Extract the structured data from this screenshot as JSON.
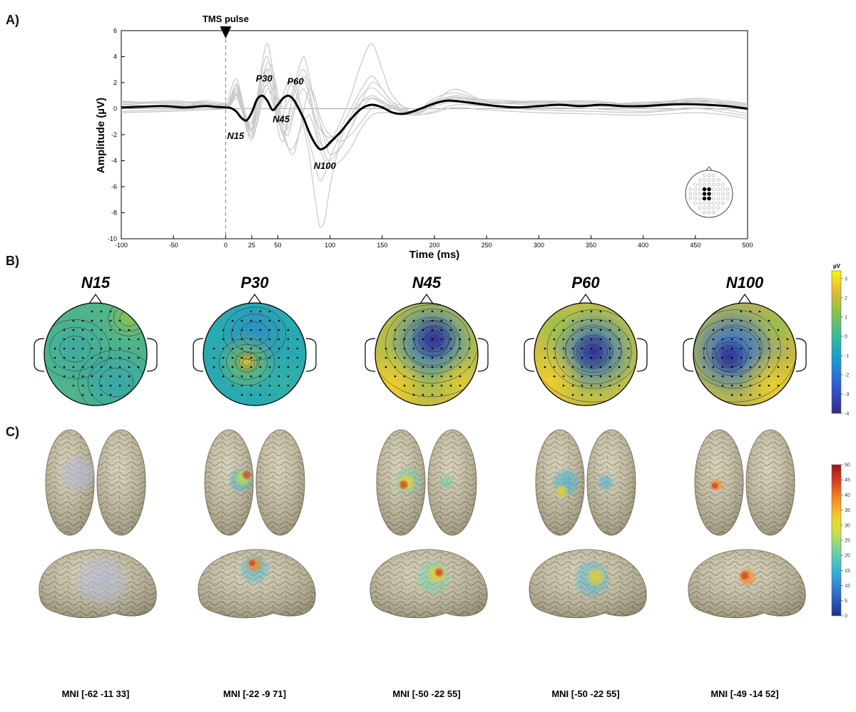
{
  "panels": {
    "a": "A)",
    "b": "B)",
    "c": "C)"
  },
  "colors": {
    "mean": "#000000",
    "channels": "#c8c8c8",
    "cortex": "#cfc7aa",
    "brain_fold": "#9b9478",
    "topo_stops": [
      "#352a87",
      "#2f5ed5",
      "#1b9acb",
      "#3db99d",
      "#8fc24a",
      "#e6b935",
      "#f9f60f"
    ],
    "source_stops": [
      "#1f2f8f",
      "#2f70d0",
      "#38b3d6",
      "#6dd0a8",
      "#c8e04a",
      "#f3d12b",
      "#f08a24",
      "#d43a1f",
      "#9c1717"
    ]
  },
  "chart_data": {
    "type": "line",
    "title": "",
    "annotation": "TMS pulse",
    "xlabel": "Time (ms)",
    "ylabel": "Amplitude (µV)",
    "xlim": [
      -100,
      500
    ],
    "ylim": [
      -10,
      6
    ],
    "xticks": [
      -100,
      -50,
      0,
      25,
      50,
      100,
      150,
      200,
      250,
      300,
      350,
      400,
      450,
      500
    ],
    "yticks": [
      -10,
      -8,
      -6,
      -4,
      -2,
      0,
      2,
      4,
      6
    ],
    "pulse_time": 0,
    "mean_series": {
      "x": [
        -100,
        -80,
        -60,
        -40,
        -20,
        -10,
        0,
        5,
        10,
        15,
        20,
        25,
        30,
        35,
        40,
        45,
        50,
        55,
        60,
        65,
        70,
        75,
        80,
        85,
        90,
        95,
        100,
        110,
        120,
        130,
        140,
        150,
        160,
        170,
        180,
        190,
        200,
        210,
        220,
        240,
        260,
        280,
        300,
        320,
        340,
        360,
        380,
        400,
        420,
        440,
        460,
        480,
        500
      ],
      "y": [
        0.1,
        0.15,
        0.2,
        0.1,
        0.2,
        0.15,
        0.1,
        0.05,
        -0.2,
        -0.7,
        -0.9,
        -0.3,
        0.7,
        1.0,
        0.6,
        -0.1,
        0.3,
        0.8,
        1.0,
        0.7,
        0.0,
        -0.8,
        -1.8,
        -2.6,
        -3.1,
        -3.0,
        -2.6,
        -1.8,
        -0.8,
        0.0,
        0.3,
        0.1,
        -0.3,
        -0.4,
        -0.2,
        0.1,
        0.4,
        0.6,
        0.6,
        0.4,
        0.2,
        0.1,
        0.2,
        0.3,
        0.2,
        0.3,
        0.2,
        0.2,
        0.3,
        0.35,
        0.3,
        0.2,
        0.0
      ]
    },
    "peaks": [
      {
        "label": "N15",
        "x": 15,
        "y": -0.9
      },
      {
        "label": "P30",
        "x": 30,
        "y": 1.0
      },
      {
        "label": "N45",
        "x": 45,
        "y": -0.1
      },
      {
        "label": "P60",
        "x": 60,
        "y": 1.0
      },
      {
        "label": "N100",
        "x": 95,
        "y": -3.1
      }
    ],
    "channels_x": [
      -100,
      -50,
      -20,
      0,
      5,
      10,
      15,
      20,
      25,
      30,
      35,
      40,
      45,
      50,
      55,
      60,
      65,
      70,
      75,
      80,
      85,
      90,
      95,
      100,
      110,
      120,
      130,
      140,
      150,
      160,
      180,
      200,
      220,
      250,
      300,
      350,
      400,
      450,
      480,
      500
    ],
    "channels": [
      [
        0.5,
        0.4,
        0.6,
        0.5,
        1.5,
        2.3,
        1.0,
        -1.5,
        -2.0,
        -0.5,
        1.2,
        1.8,
        0.5,
        -0.5,
        1.0,
        2.0,
        1.6,
        0.5,
        -1.5,
        -3.5,
        -6.5,
        -9.0,
        -8.5,
        -6.0,
        -2.5,
        -0.5,
        0.5,
        0.8,
        0.4,
        0.1,
        -0.2,
        0.5,
        0.8,
        0.4,
        0.5,
        0.6,
        0.3,
        0.7,
        0.4,
        0.2
      ],
      [
        0.3,
        0.5,
        0.3,
        0.2,
        1.0,
        1.8,
        0.8,
        -1.0,
        -1.6,
        0.5,
        2.5,
        3.0,
        1.0,
        -1.0,
        -0.5,
        1.5,
        2.0,
        1.0,
        -0.8,
        -2.5,
        -4.0,
        -5.5,
        -5.0,
        -3.8,
        -2.0,
        -0.5,
        1.0,
        1.6,
        1.0,
        0.3,
        -0.3,
        0.8,
        1.2,
        0.6,
        0.4,
        0.3,
        0.5,
        0.6,
        0.3,
        0.1
      ],
      [
        0.1,
        0.2,
        0.3,
        0.4,
        0.6,
        1.4,
        0.3,
        -1.2,
        -1.8,
        0.0,
        3.0,
        4.0,
        2.0,
        -1.5,
        -2.5,
        -0.5,
        1.0,
        2.0,
        2.2,
        1.0,
        -1.0,
        -2.5,
        -3.0,
        -2.8,
        -1.5,
        0.0,
        1.5,
        2.5,
        1.5,
        0.5,
        -0.5,
        0.3,
        1.0,
        0.5,
        0.3,
        0.2,
        0.1,
        0.4,
        0.2,
        -0.1
      ],
      [
        0.6,
        0.4,
        0.5,
        0.3,
        0.8,
        1.6,
        0.6,
        -0.8,
        -1.2,
        0.8,
        3.5,
        5.0,
        3.0,
        -0.5,
        -2.0,
        -1.0,
        1.5,
        3.0,
        4.0,
        2.5,
        0.5,
        -1.0,
        -2.0,
        -2.5,
        -1.0,
        1.0,
        3.5,
        5.0,
        3.0,
        1.0,
        -0.3,
        0.5,
        1.5,
        0.6,
        0.5,
        0.4,
        0.2,
        0.6,
        0.5,
        0.3
      ],
      [
        -0.2,
        -0.1,
        0.0,
        0.1,
        0.4,
        1.0,
        0.2,
        -1.4,
        -2.2,
        -1.0,
        1.0,
        2.0,
        1.5,
        0.0,
        -1.5,
        -2.0,
        -0.5,
        1.0,
        1.5,
        0.5,
        -0.5,
        -1.5,
        -2.0,
        -2.2,
        -1.8,
        -0.8,
        0.5,
        1.0,
        0.6,
        0.1,
        -0.4,
        0.2,
        0.5,
        0.2,
        -0.1,
        -0.2,
        -0.3,
        0.0,
        -0.3,
        -0.6
      ],
      [
        0.3,
        0.2,
        0.4,
        0.2,
        0.5,
        1.2,
        0.4,
        -0.9,
        -1.5,
        -0.5,
        1.5,
        2.5,
        2.0,
        0.5,
        -1.0,
        -1.5,
        0.0,
        1.5,
        2.5,
        1.5,
        -0.5,
        -2.0,
        -3.5,
        -4.0,
        -3.0,
        -1.5,
        0.0,
        0.8,
        0.5,
        0.2,
        -0.2,
        0.6,
        0.9,
        0.5,
        0.6,
        0.5,
        0.4,
        0.8,
        0.6,
        0.4
      ],
      [
        0.0,
        0.3,
        0.2,
        0.0,
        0.3,
        0.8,
        0.0,
        -1.0,
        -1.6,
        0.0,
        2.0,
        3.5,
        3.0,
        1.0,
        -1.5,
        -3.0,
        -3.5,
        -2.0,
        0.0,
        1.5,
        1.0,
        -0.5,
        -1.5,
        -2.0,
        -2.5,
        -2.0,
        -1.0,
        0.0,
        0.2,
        0.0,
        -0.5,
        -0.2,
        0.3,
        0.2,
        0.1,
        0.0,
        -0.2,
        0.1,
        -0.1,
        -0.4
      ],
      [
        0.4,
        0.6,
        0.4,
        0.3,
        0.7,
        1.9,
        0.9,
        -0.7,
        -1.0,
        0.5,
        2.0,
        3.0,
        2.5,
        1.0,
        0.0,
        0.5,
        1.5,
        2.5,
        3.0,
        2.0,
        0.5,
        -1.0,
        -2.5,
        -3.5,
        -3.0,
        -1.5,
        0.5,
        2.0,
        1.5,
        0.5,
        0.0,
        0.4,
        0.8,
        0.7,
        0.5,
        0.3,
        0.4,
        0.5,
        0.4,
        0.2
      ],
      [
        -0.3,
        -0.2,
        -0.1,
        0.0,
        0.3,
        1.1,
        0.1,
        -1.6,
        -2.4,
        -1.2,
        0.5,
        1.5,
        1.0,
        -0.5,
        -2.0,
        -3.0,
        -3.0,
        -2.0,
        -1.0,
        -0.5,
        -1.5,
        -3.0,
        -4.0,
        -4.5,
        -4.0,
        -3.0,
        -1.5,
        -0.5,
        -0.3,
        -0.3,
        -0.5,
        -0.3,
        0.1,
        -0.1,
        -0.3,
        -0.4,
        -0.5,
        -0.3,
        -0.5,
        -0.8
      ]
    ]
  },
  "topomaps": [
    {
      "title": "N15",
      "style": "n15"
    },
    {
      "title": "P30",
      "style": "p30"
    },
    {
      "title": "N45",
      "style": "n45"
    },
    {
      "title": "P60",
      "style": "p60"
    },
    {
      "title": "N100",
      "style": "n100"
    }
  ],
  "topo_colorbar": {
    "unit": "µV",
    "min": -4,
    "max": 3.4,
    "ticks": [
      "3",
      "2",
      "1",
      "0",
      "-1",
      "-2",
      "-3",
      "-4"
    ]
  },
  "sources": [
    {
      "mni": "MNI [-62 -11 33]",
      "style": "n15"
    },
    {
      "mni": "MNI [-22 -9 71]",
      "style": "p30"
    },
    {
      "mni": "MNI [-50 -22 55]",
      "style": "n45"
    },
    {
      "mni": "MNI [-50 -22 55]",
      "style": "p60"
    },
    {
      "mni": "MNI [-49 -14 52]",
      "style": "n100"
    }
  ],
  "source_colorbar": {
    "min": 0,
    "max": 50,
    "ticks": [
      "50",
      "45",
      "40",
      "35",
      "30",
      "25",
      "20",
      "15",
      "10",
      "5",
      "0"
    ]
  }
}
